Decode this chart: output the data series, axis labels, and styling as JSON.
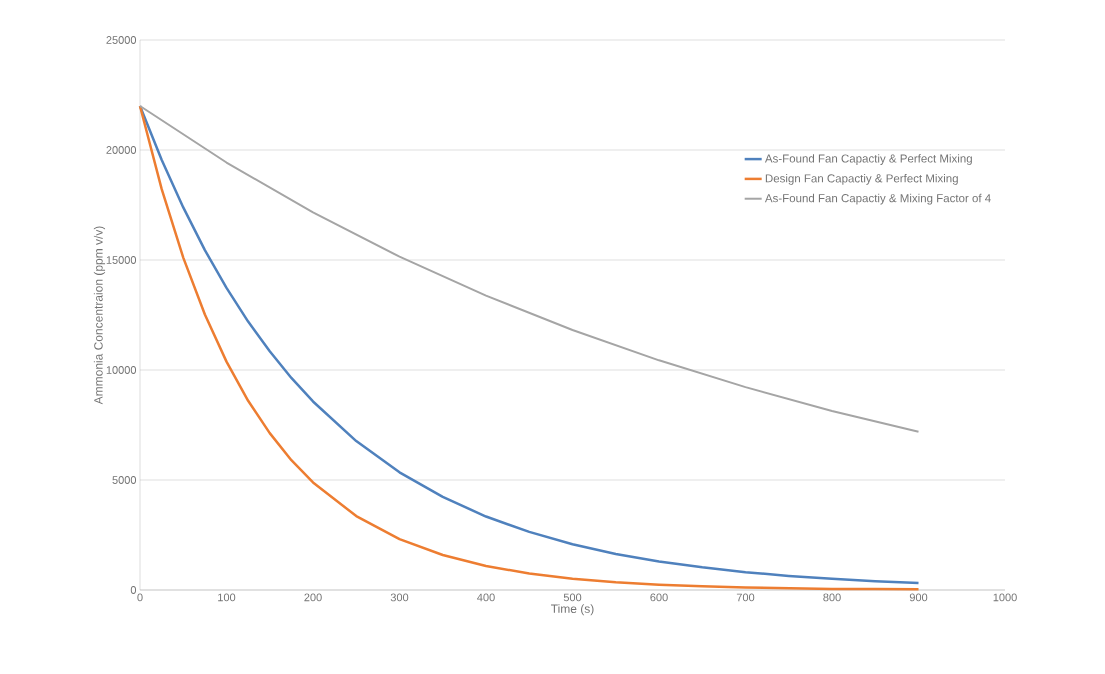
{
  "chart_data": {
    "type": "line",
    "xlabel": "Time (s)",
    "ylabel": "Ammonia Concentraion (ppm v/v)",
    "xlim": [
      0,
      1000
    ],
    "xticks": [
      0,
      100,
      200,
      300,
      400,
      500,
      600,
      700,
      800,
      900,
      1000
    ],
    "ylim": [
      0,
      25000
    ],
    "yticks": [
      0,
      5000,
      10000,
      15000,
      20000,
      25000
    ],
    "grid": "y",
    "legend": "top right",
    "marker": "none",
    "line_style": "solid",
    "series": [
      {
        "name": "As-Found Fan Capactiy & Perfect Mixing",
        "color": "#4f81bd",
        "x": [
          0,
          25,
          50,
          75,
          100,
          125,
          150,
          175,
          200,
          250,
          300,
          350,
          400,
          450,
          500,
          550,
          600,
          650,
          700,
          750,
          800,
          850,
          900
        ],
        "values": [
          22000,
          19560,
          17390,
          15450,
          13730,
          12200,
          10850,
          9640,
          8570,
          6770,
          5350,
          4230,
          3340,
          2640,
          2080,
          1640,
          1300,
          1030,
          810,
          640,
          510,
          400,
          320
        ]
      },
      {
        "name": "Design Fan Capactiy & Perfect Mixing",
        "color": "#ed7d31",
        "x": [
          0,
          25,
          50,
          75,
          100,
          125,
          150,
          175,
          200,
          250,
          300,
          350,
          400,
          450,
          500,
          550,
          600,
          650,
          700,
          750,
          800,
          850,
          900
        ],
        "values": [
          22000,
          18230,
          15110,
          12520,
          10380,
          8600,
          7130,
          5900,
          4890,
          3360,
          2310,
          1590,
          1090,
          750,
          510,
          350,
          240,
          170,
          110,
          80,
          50,
          40,
          30
        ]
      },
      {
        "name": "As-Found Fan Capactiy & Mixing Factor of 4",
        "color": "#a5a5a5",
        "x": [
          0,
          100,
          200,
          300,
          400,
          500,
          600,
          700,
          800,
          900
        ],
        "values": [
          22000,
          19430,
          17160,
          15150,
          13380,
          11820,
          10440,
          9220,
          8140,
          7190
        ]
      }
    ]
  }
}
